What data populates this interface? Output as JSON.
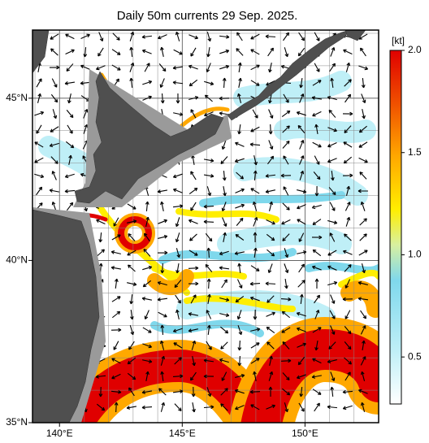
{
  "title": "Daily 50m currents 29 Sep. 2025.",
  "map": {
    "xlim": [
      138.9,
      153.0
    ],
    "ylim": [
      35.0,
      47.1
    ],
    "xticks": [
      {
        "value": 140,
        "label": "140°E"
      },
      {
        "value": 145,
        "label": "145°E"
      },
      {
        "value": 150,
        "label": "150°E"
      }
    ],
    "yticks": [
      {
        "value": 35,
        "label": "35°N"
      },
      {
        "value": 40,
        "label": "40°N"
      },
      {
        "value": 45,
        "label": "45°N"
      }
    ]
  },
  "colorbar": {
    "unit": "[kt]",
    "lim": [
      0.27,
      2.0
    ],
    "ticks": [
      0.5,
      {
        "value": 1.0,
        "label": "1.0"
      },
      1.5,
      {
        "value": 2.0,
        "label": "2.0"
      }
    ]
  }
}
